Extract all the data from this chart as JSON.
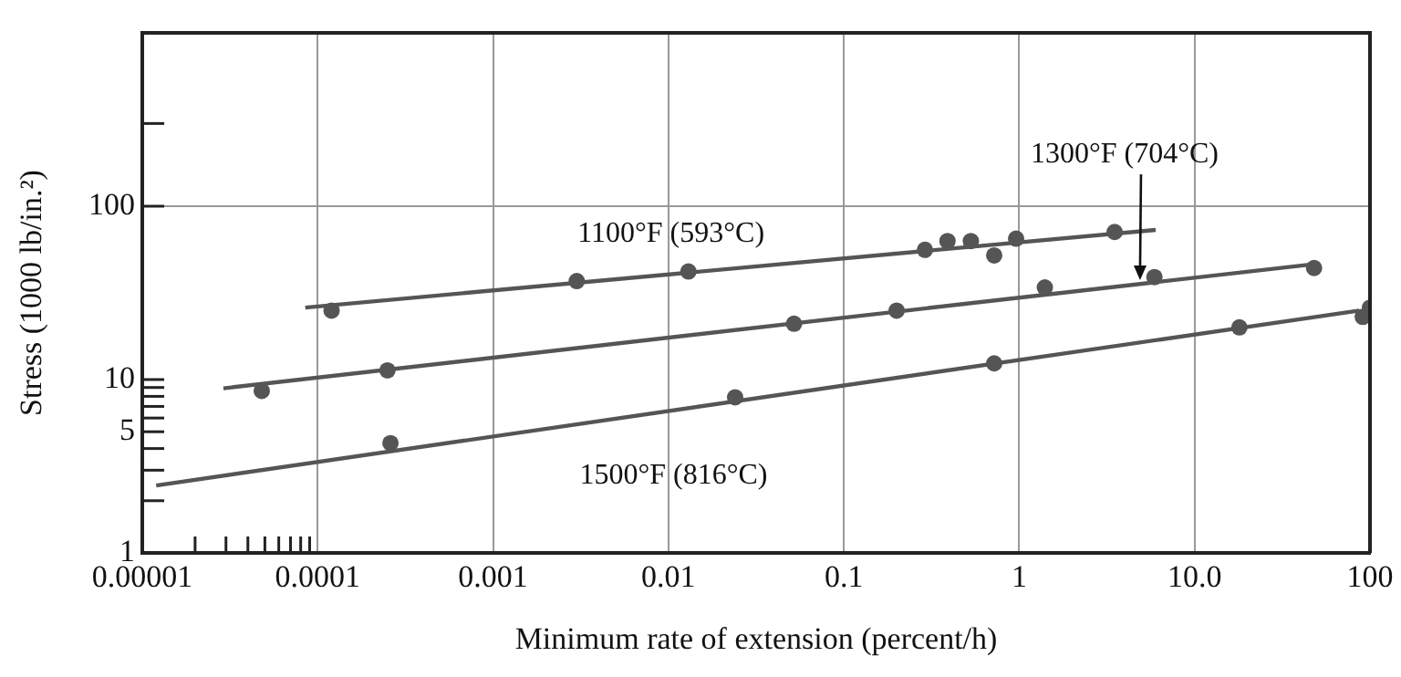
{
  "chart_data": {
    "type": "scatter",
    "xlabel": "Minimum rate of extension (percent/h)",
    "ylabel": "Stress (1000 lb/in.²)",
    "log": "xy",
    "grid": "x",
    "xlim": [
      1e-05,
      100
    ],
    "xticks": [
      {
        "value": 1e-05,
        "label": "0.00001"
      },
      {
        "value": 2e-05,
        "label": null
      },
      {
        "value": 3e-05,
        "label": null
      },
      {
        "value": 4e-05,
        "label": null
      },
      {
        "value": 5e-05,
        "label": null
      },
      {
        "value": 6e-05,
        "label": null
      },
      {
        "value": 7e-05,
        "label": null
      },
      {
        "value": 8e-05,
        "label": null
      },
      {
        "value": 9e-05,
        "label": null
      },
      0.0001,
      0.001,
      0.01,
      0.1,
      1,
      {
        "value": 10,
        "label": "10.0"
      },
      100
    ],
    "ylim": [
      1,
      1000
    ],
    "yticks": [
      1,
      {
        "value": 2,
        "label": null
      },
      {
        "value": 3,
        "label": null
      },
      {
        "value": 4,
        "label": null
      },
      5,
      {
        "value": 6,
        "label": null
      },
      {
        "value": 7,
        "label": null
      },
      {
        "value": 8,
        "label": null
      },
      {
        "value": 9,
        "label": null
      },
      10,
      100,
      {
        "value": 300,
        "label": null
      }
    ],
    "ref_lines": [
      {
        "axis": "y",
        "value": 100,
        "color": "#999999"
      }
    ],
    "series": [
      {
        "type": "line",
        "name": "1100°F (593°C)",
        "marker": "none",
        "color": "#555555",
        "x": [
          8.5e-05,
          6
        ],
        "values": [
          26,
          73
        ]
      },
      {
        "type": "scatter",
        "marker": "circle",
        "color": "#555555",
        "x": [
          0.00012,
          0.003,
          0.013,
          0.29,
          0.39,
          0.53,
          0.72,
          0.96,
          3.5
        ],
        "values": [
          25,
          37,
          42,
          56,
          63,
          63,
          52,
          65,
          71
        ]
      },
      {
        "type": "line",
        "name": "1300°F (704°C)",
        "marker": "none",
        "color": "#555555",
        "x": [
          2.9e-05,
          45
        ],
        "values": [
          8.9,
          46
        ]
      },
      {
        "type": "scatter",
        "marker": "circle",
        "color": "#555555",
        "x": [
          4.8e-05,
          0.00025,
          0.052,
          0.2,
          1.4,
          5.9,
          48
        ],
        "values": [
          8.6,
          11.3,
          21,
          25,
          34,
          39,
          44
        ]
      },
      {
        "type": "line",
        "name": "1500°F (816°C)",
        "marker": "none",
        "color": "#555555",
        "x": [
          1.2e-05,
          87
        ],
        "values": [
          2.45,
          25
        ]
      },
      {
        "type": "scatter",
        "marker": "circle",
        "color": "#555555",
        "x": [
          0.00026,
          0.024,
          0.72,
          18,
          91,
          100
        ],
        "values": [
          4.3,
          7.9,
          12.4,
          20,
          23,
          26
        ]
      }
    ]
  }
}
